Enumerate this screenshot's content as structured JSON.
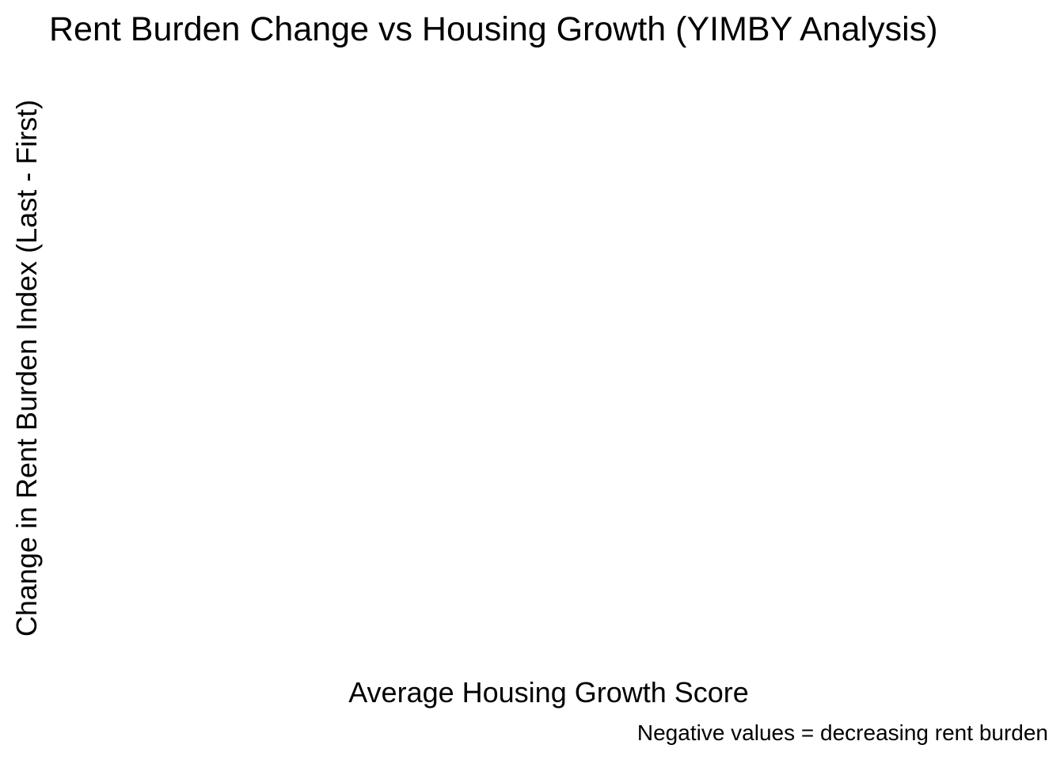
{
  "chart_data": {
    "type": "scatter",
    "title": "Rent Burden Change vs Housing Growth (YIMBY Analysis)",
    "xlabel": "Average Housing Growth Score",
    "ylabel": "Change in Rent Burden Index (Last - First)",
    "caption": "Negative values = decreasing rent burden",
    "grid": false,
    "points": []
  }
}
